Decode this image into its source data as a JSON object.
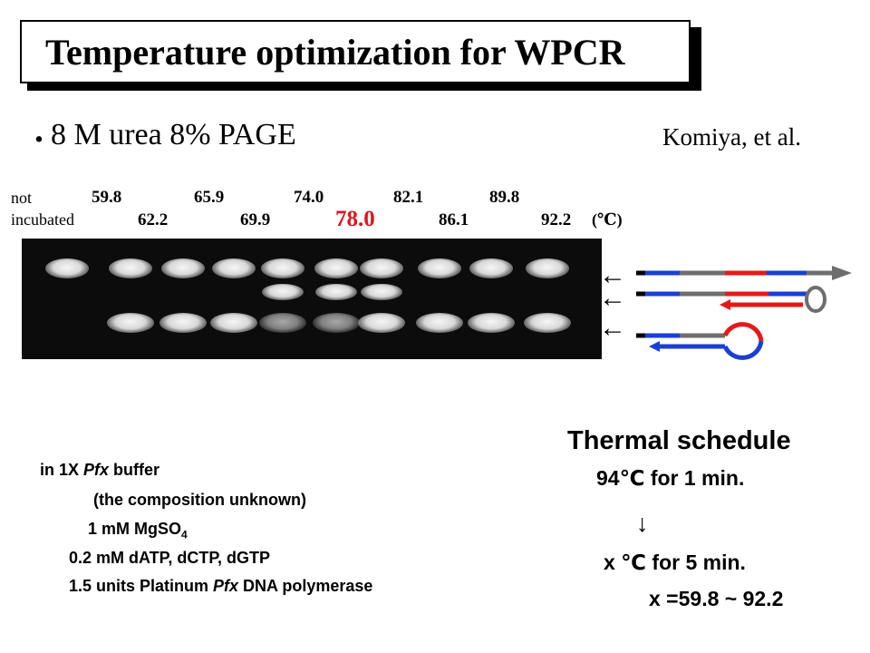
{
  "slide": {
    "title": "Temperature optimization for WPCR",
    "bullet_symbol": "・",
    "bullet": "8 M urea 8% PAGE",
    "author": "Komiya, et al."
  },
  "lanes": {
    "not_incubated_line1": "not",
    "not_incubated_line2": "incubated",
    "top_row": [
      "59.8",
      "65.9",
      "74.0",
      "82.1",
      "89.8"
    ],
    "bottom_row": [
      "62.2",
      "69.9",
      "78.0",
      "86.1",
      "92.2"
    ],
    "unit": "(℃)",
    "highlight_value": "78.0",
    "highlight_color": "#e0141e"
  },
  "gel_bands": {
    "note": "relative band intensity per lane (0=absent, 1=strong)",
    "lane_count": 10,
    "top_band": [
      1,
      1,
      1,
      1,
      1,
      1,
      1,
      1,
      1,
      1
    ],
    "middle_band": [
      0,
      0,
      0,
      0,
      1,
      1,
      1,
      0,
      0,
      0
    ],
    "bottom_band": [
      0,
      1,
      1,
      1,
      0.5,
      0.5,
      1,
      1,
      1,
      1
    ]
  },
  "legend": {
    "arrow_symbol": "←",
    "colors": {
      "blue": "#1a3fd6",
      "red": "#e81818",
      "gray": "#6e6e6e",
      "black": "#000000"
    }
  },
  "buffer": {
    "line1_prefix": "in  1X ",
    "line1_italic": "Pfx",
    "line1_suffix": " buffer",
    "line2": "(the composition unknown)",
    "line3_prefix": "1 mM  MgSO",
    "line3_sub": "4",
    "line4": "0.2 mM  dATP, dCTP, dGTP",
    "line5_prefix": "1.5 units  Platinum ",
    "line5_italic": "Pfx",
    "line5_suffix": " DNA polymerase"
  },
  "thermal": {
    "title": "Thermal schedule",
    "step1": "94℃ for 1 min.",
    "arrow": "↓",
    "step2": "x ℃ for 5 min.",
    "range": "x =59.8 ~ 92.2"
  }
}
